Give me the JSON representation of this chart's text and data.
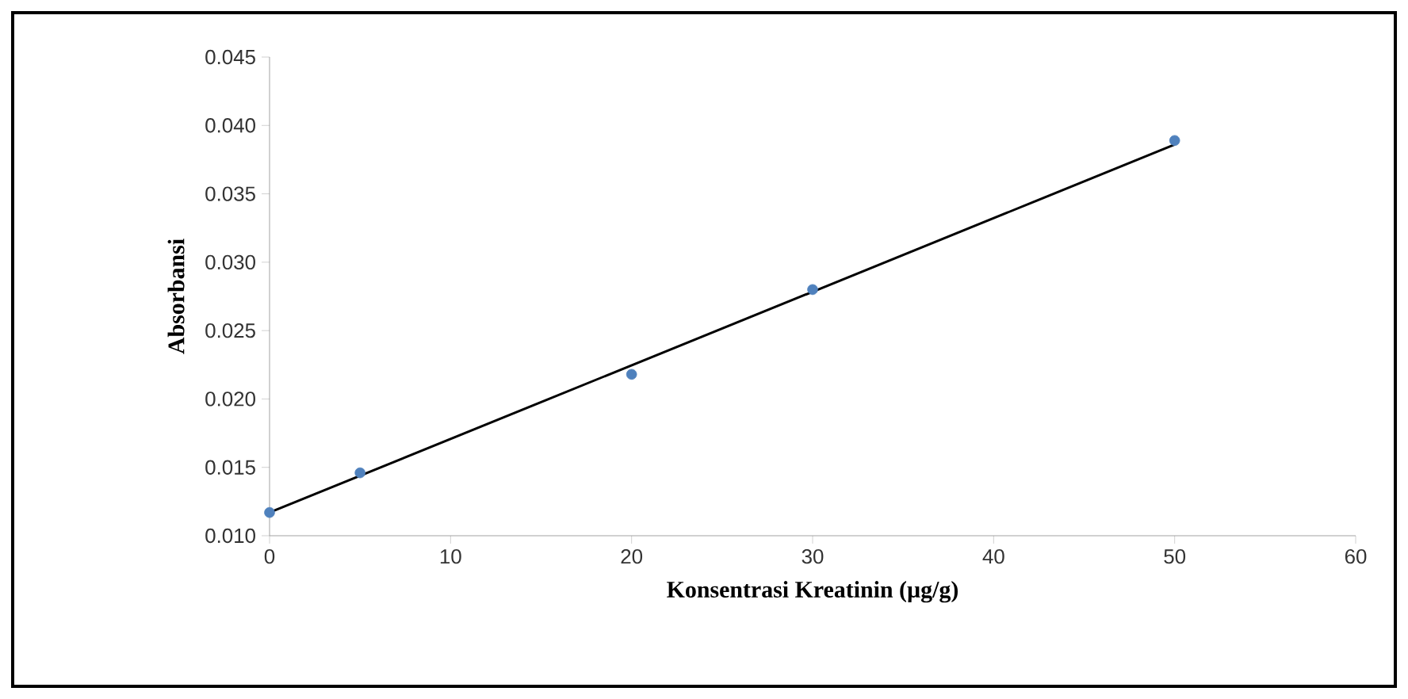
{
  "chart_data": {
    "type": "scatter",
    "xlabel": "Konsentrasi Kreatinin (µg/g)",
    "ylabel": "Absorbansi",
    "xlim": [
      0,
      60
    ],
    "xticks": [
      0,
      10,
      20,
      30,
      40,
      50,
      60
    ],
    "ylim": [
      0.01,
      0.045
    ],
    "yticks": [
      {
        "value": 0.01,
        "label": "0.010"
      },
      {
        "value": 0.015,
        "label": "0.015"
      },
      {
        "value": 0.02,
        "label": "0.020"
      },
      {
        "value": 0.025,
        "label": "0.025"
      },
      {
        "value": 0.03,
        "label": "0.030"
      },
      {
        "value": 0.035,
        "label": "0.035"
      },
      {
        "value": 0.04,
        "label": "0.040"
      },
      {
        "value": 0.045,
        "label": "0.045"
      }
    ],
    "grid": false,
    "series": [
      {
        "marker": "circle",
        "color": "#4f81bd",
        "x": [
          0,
          5,
          20,
          30,
          50
        ],
        "values": [
          0.0117,
          0.0146,
          0.0218,
          0.028,
          0.0389
        ]
      },
      {
        "type": "line",
        "marker": "none",
        "color": "#000000",
        "x": [
          0,
          50
        ],
        "values": [
          0.0117,
          0.0386
        ]
      }
    ]
  }
}
